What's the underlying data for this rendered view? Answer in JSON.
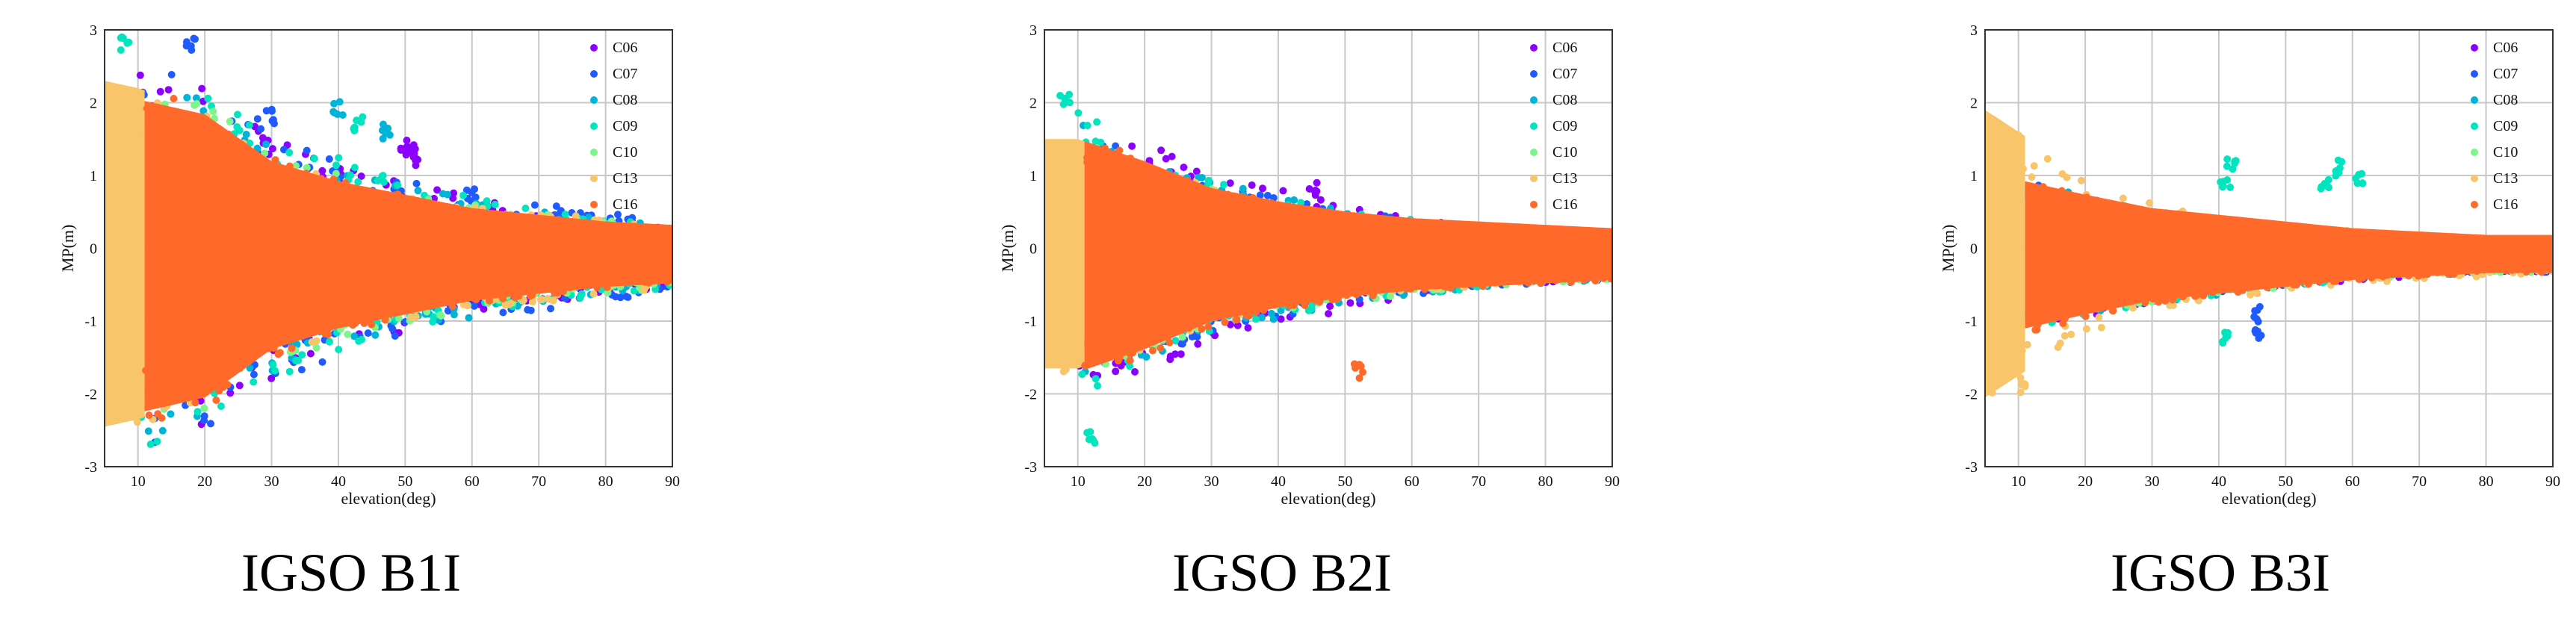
{
  "figure": {
    "captions": [
      "IGSO B1I",
      "IGSO B2I",
      "IGSO B3I"
    ]
  },
  "chart_data": [
    {
      "type": "scatter",
      "title": "IGSO B1I",
      "xlabel": "elevation(deg)",
      "ylabel": "MP(m)",
      "xlim": [
        5,
        90
      ],
      "ylim": [
        -3,
        3
      ],
      "xticks": [
        10,
        20,
        30,
        40,
        50,
        60,
        70,
        80,
        90
      ],
      "yticks": [
        -3,
        -2,
        -1,
        0,
        1,
        2,
        3
      ],
      "grid": true,
      "legend_position": "top-right",
      "series": [
        {
          "name": "C06",
          "color": "#8B00FF",
          "envelope": [
            [
              10,
              2.4
            ],
            [
              20,
              2.2
            ],
            [
              30,
              1.6
            ],
            [
              40,
              1.2
            ],
            [
              50,
              1.0
            ],
            [
              60,
              0.8
            ],
            [
              70,
              0.6
            ],
            [
              80,
              0.5
            ],
            [
              90,
              0.4
            ]
          ],
          "features": [
            {
              "x": 50,
              "y": 1.3
            },
            {
              "x": 51,
              "y": 1.4
            },
            {
              "x": 52,
              "y": 1.2
            }
          ]
        },
        {
          "name": "C07",
          "color": "#1F5BFF",
          "envelope": [
            [
              10,
              2.6
            ],
            [
              20,
              2.3
            ],
            [
              30,
              1.7
            ],
            [
              40,
              1.3
            ],
            [
              50,
              1.0
            ],
            [
              60,
              0.8
            ],
            [
              70,
              0.7
            ],
            [
              80,
              0.6
            ],
            [
              90,
              0.4
            ]
          ],
          "features": [
            {
              "x": 18,
              "y": 2.8
            },
            {
              "x": 30,
              "y": 1.8
            },
            {
              "x": 60,
              "y": 0.7
            }
          ]
        },
        {
          "name": "C08",
          "color": "#00B4D8",
          "envelope": [
            [
              10,
              2.5
            ],
            [
              20,
              2.1
            ],
            [
              30,
              1.5
            ],
            [
              40,
              1.2
            ],
            [
              50,
              0.9
            ],
            [
              60,
              0.8
            ],
            [
              70,
              0.6
            ],
            [
              80,
              0.5
            ],
            [
              90,
              0.4
            ]
          ],
          "features": [
            {
              "x": 40,
              "y": 1.9
            },
            {
              "x": 47,
              "y": 1.6
            }
          ]
        },
        {
          "name": "C09",
          "color": "#00E5C0",
          "envelope": [
            [
              10,
              2.7
            ],
            [
              20,
              2.2
            ],
            [
              30,
              1.6
            ],
            [
              40,
              1.3
            ],
            [
              50,
              1.0
            ],
            [
              60,
              0.8
            ],
            [
              70,
              0.6
            ],
            [
              80,
              0.5
            ],
            [
              90,
              0.4
            ]
          ],
          "features": [
            {
              "x": 8,
              "y": 2.8
            },
            {
              "x": 43,
              "y": 1.7
            }
          ]
        },
        {
          "name": "C10",
          "color": "#7CF58A",
          "envelope": [
            [
              10,
              2.3
            ],
            [
              20,
              2.0
            ],
            [
              30,
              1.4
            ],
            [
              40,
              1.1
            ],
            [
              50,
              0.9
            ],
            [
              60,
              0.7
            ],
            [
              70,
              0.6
            ],
            [
              80,
              0.5
            ],
            [
              90,
              0.4
            ]
          ],
          "features": []
        },
        {
          "name": "C13",
          "color": "#F8C56A",
          "envelope": [
            [
              5,
              2.3
            ],
            [
              10,
              2.2
            ],
            [
              20,
              1.9
            ],
            [
              30,
              1.3
            ],
            [
              40,
              1.0
            ],
            [
              50,
              0.8
            ],
            [
              60,
              0.7
            ],
            [
              70,
              0.6
            ],
            [
              80,
              0.5
            ],
            [
              90,
              0.4
            ]
          ],
          "features": []
        },
        {
          "name": "C16",
          "color": "#FF6A2B",
          "envelope": [
            [
              11,
              2.2
            ],
            [
              20,
              2.0
            ],
            [
              30,
              1.3
            ],
            [
              40,
              1.0
            ],
            [
              50,
              0.8
            ],
            [
              60,
              0.6
            ],
            [
              70,
              0.5
            ],
            [
              80,
              0.4
            ],
            [
              90,
              0.35
            ]
          ],
          "features": []
        }
      ]
    },
    {
      "type": "scatter",
      "title": "IGSO B2I",
      "xlabel": "elevation(deg)",
      "ylabel": "MP(m)",
      "xlim": [
        5,
        90
      ],
      "ylim": [
        -3,
        3
      ],
      "xticks": [
        10,
        20,
        30,
        40,
        50,
        60,
        70,
        80,
        90
      ],
      "yticks": [
        -3,
        -2,
        -1,
        0,
        1,
        2,
        3
      ],
      "grid": true,
      "legend_position": "top-right",
      "series": [
        {
          "name": "C06",
          "color": "#8B00FF",
          "envelope": [
            [
              10,
              1.6
            ],
            [
              20,
              1.5
            ],
            [
              30,
              1.1
            ],
            [
              40,
              0.9
            ],
            [
              50,
              0.7
            ],
            [
              60,
              0.5
            ],
            [
              70,
              0.4
            ],
            [
              80,
              0.35
            ],
            [
              90,
              0.3
            ]
          ],
          "features": [
            {
              "x": 16,
              "y": -1.5
            },
            {
              "x": 27,
              "y": 0.9
            },
            {
              "x": 45,
              "y": 0.8
            }
          ]
        },
        {
          "name": "C07",
          "color": "#1F5BFF",
          "envelope": [
            [
              10,
              1.6
            ],
            [
              20,
              1.4
            ],
            [
              30,
              1.0
            ],
            [
              40,
              0.8
            ],
            [
              50,
              0.6
            ],
            [
              60,
              0.5
            ],
            [
              70,
              0.4
            ],
            [
              80,
              0.35
            ],
            [
              90,
              0.3
            ]
          ],
          "features": []
        },
        {
          "name": "C08",
          "color": "#00B4D8",
          "envelope": [
            [
              10,
              1.8
            ],
            [
              20,
              1.4
            ],
            [
              30,
              1.0
            ],
            [
              40,
              0.8
            ],
            [
              50,
              0.6
            ],
            [
              60,
              0.5
            ],
            [
              70,
              0.4
            ],
            [
              80,
              0.35
            ],
            [
              90,
              0.3
            ]
          ],
          "features": []
        },
        {
          "name": "C09",
          "color": "#00E5C0",
          "envelope": [
            [
              10,
              2.0
            ],
            [
              20,
              1.4
            ],
            [
              30,
              1.0
            ],
            [
              40,
              0.8
            ],
            [
              50,
              0.6
            ],
            [
              60,
              0.5
            ],
            [
              70,
              0.4
            ],
            [
              80,
              0.35
            ],
            [
              90,
              0.3
            ]
          ],
          "features": [
            {
              "x": 12,
              "y": -2.6
            },
            {
              "x": 8,
              "y": 2.0
            }
          ]
        },
        {
          "name": "C10",
          "color": "#7CF58A",
          "envelope": [
            [
              10,
              1.5
            ],
            [
              20,
              1.3
            ],
            [
              30,
              0.9
            ],
            [
              40,
              0.7
            ],
            [
              50,
              0.6
            ],
            [
              60,
              0.5
            ],
            [
              70,
              0.4
            ],
            [
              80,
              0.35
            ],
            [
              90,
              0.3
            ]
          ],
          "features": []
        },
        {
          "name": "C13",
          "color": "#F8C56A",
          "envelope": [
            [
              5,
              1.5
            ],
            [
              10,
              1.5
            ],
            [
              20,
              1.2
            ],
            [
              30,
              0.9
            ],
            [
              40,
              0.7
            ],
            [
              50,
              0.55
            ],
            [
              60,
              0.45
            ],
            [
              70,
              0.4
            ],
            [
              80,
              0.35
            ],
            [
              90,
              0.3
            ]
          ],
          "features": []
        },
        {
          "name": "C16",
          "color": "#FF6A2B",
          "envelope": [
            [
              11,
              1.6
            ],
            [
              20,
              1.3
            ],
            [
              30,
              0.9
            ],
            [
              40,
              0.7
            ],
            [
              50,
              0.55
            ],
            [
              60,
              0.45
            ],
            [
              70,
              0.4
            ],
            [
              80,
              0.35
            ],
            [
              90,
              0.3
            ]
          ],
          "features": [
            {
              "x": 52,
              "y": -1.7
            }
          ]
        }
      ]
    },
    {
      "type": "scatter",
      "title": "IGSO B3I",
      "xlabel": "elevation(deg)",
      "ylabel": "MP(m)",
      "xlim": [
        5,
        90
      ],
      "ylim": [
        -3,
        3
      ],
      "xticks": [
        10,
        20,
        30,
        40,
        50,
        60,
        70,
        80,
        90
      ],
      "yticks": [
        -3,
        -2,
        -1,
        0,
        1,
        2,
        3
      ],
      "grid": true,
      "legend_position": "top-right",
      "series": [
        {
          "name": "C06",
          "color": "#8B00FF",
          "envelope": [
            [
              10,
              1.0
            ],
            [
              20,
              0.8
            ],
            [
              30,
              0.6
            ],
            [
              40,
              0.5
            ],
            [
              50,
              0.4
            ],
            [
              60,
              0.3
            ],
            [
              70,
              0.25
            ],
            [
              80,
              0.2
            ],
            [
              90,
              0.2
            ]
          ],
          "features": []
        },
        {
          "name": "C07",
          "color": "#1F5BFF",
          "envelope": [
            [
              10,
              1.0
            ],
            [
              20,
              0.8
            ],
            [
              30,
              0.6
            ],
            [
              40,
              0.5
            ],
            [
              50,
              0.4
            ],
            [
              60,
              0.3
            ],
            [
              70,
              0.25
            ],
            [
              80,
              0.2
            ],
            [
              90,
              0.2
            ]
          ],
          "features": [
            {
              "x": 46,
              "y": -1.2
            },
            {
              "x": 46,
              "y": -0.9
            }
          ]
        },
        {
          "name": "C08",
          "color": "#00B4D8",
          "envelope": [
            [
              10,
              1.0
            ],
            [
              20,
              0.8
            ],
            [
              30,
              0.6
            ],
            [
              40,
              0.5
            ],
            [
              50,
              0.4
            ],
            [
              60,
              0.3
            ],
            [
              70,
              0.25
            ],
            [
              80,
              0.2
            ],
            [
              90,
              0.2
            ]
          ],
          "features": []
        },
        {
          "name": "C09",
          "color": "#00E5C0",
          "envelope": [
            [
              10,
              1.0
            ],
            [
              20,
              0.8
            ],
            [
              30,
              0.6
            ],
            [
              40,
              0.5
            ],
            [
              50,
              0.4
            ],
            [
              60,
              0.3
            ],
            [
              70,
              0.25
            ],
            [
              80,
              0.2
            ],
            [
              90,
              0.2
            ]
          ],
          "features": [
            {
              "x": 41,
              "y": 0.9
            },
            {
              "x": 42,
              "y": 1.2
            },
            {
              "x": 56,
              "y": 0.9
            },
            {
              "x": 58,
              "y": 1.1
            },
            {
              "x": 61,
              "y": 1.0
            },
            {
              "x": 41,
              "y": -1.2
            }
          ]
        },
        {
          "name": "C10",
          "color": "#7CF58A",
          "envelope": [
            [
              10,
              0.9
            ],
            [
              20,
              0.7
            ],
            [
              30,
              0.6
            ],
            [
              40,
              0.5
            ],
            [
              50,
              0.4
            ],
            [
              60,
              0.3
            ],
            [
              70,
              0.25
            ],
            [
              80,
              0.2
            ],
            [
              90,
              0.2
            ]
          ],
          "features": []
        },
        {
          "name": "C13",
          "color": "#F8C56A",
          "envelope": [
            [
              5,
              1.9
            ],
            [
              10,
              1.6
            ],
            [
              20,
              1.0
            ],
            [
              30,
              0.7
            ],
            [
              40,
              0.55
            ],
            [
              50,
              0.45
            ],
            [
              60,
              0.35
            ],
            [
              70,
              0.3
            ],
            [
              80,
              0.25
            ],
            [
              90,
              0.2
            ]
          ],
          "features": [
            {
              "x": 11,
              "y": -1.9
            }
          ]
        },
        {
          "name": "C16",
          "color": "#FF6A2B",
          "envelope": [
            [
              11,
              1.0
            ],
            [
              20,
              0.8
            ],
            [
              30,
              0.6
            ],
            [
              40,
              0.5
            ],
            [
              50,
              0.4
            ],
            [
              60,
              0.3
            ],
            [
              70,
              0.25
            ],
            [
              80,
              0.2
            ],
            [
              90,
              0.2
            ]
          ],
          "features": []
        }
      ]
    }
  ]
}
